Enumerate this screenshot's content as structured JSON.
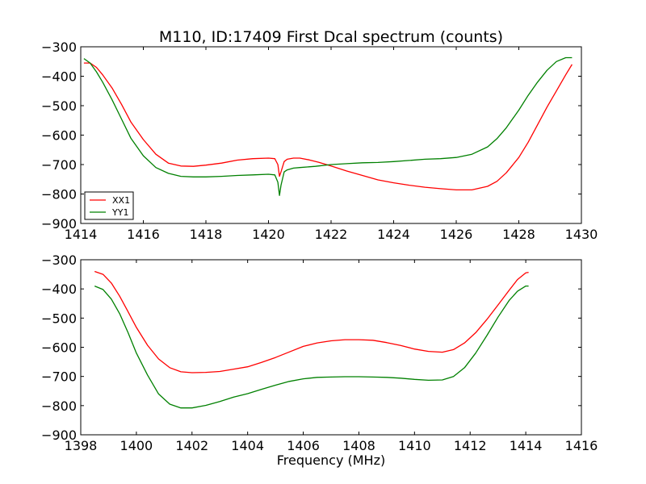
{
  "chart_data": [
    {
      "type": "line",
      "title": "M110, ID:17409 First Dcal spectrum (counts)",
      "xlabel": "",
      "ylabel": "",
      "xlim": [
        1414,
        1430
      ],
      "ylim": [
        -900,
        -300
      ],
      "xticks": [
        1414,
        1416,
        1418,
        1420,
        1422,
        1424,
        1426,
        1428,
        1430
      ],
      "yticks": [
        -300,
        -400,
        -500,
        -600,
        -700,
        -800,
        -900
      ],
      "xtick_labels": [
        "1414",
        "1416",
        "1418",
        "1420",
        "1422",
        "1424",
        "1426",
        "1428",
        "1430"
      ],
      "ytick_labels": [
        "−300",
        "−400",
        "−500",
        "−600",
        "−700",
        "−800",
        "−900"
      ],
      "grid": false,
      "legend": "lower-left",
      "series": [
        {
          "name": "XX1",
          "color": "#ff0000",
          "x": [
            1414.1,
            1414.3,
            1414.5,
            1414.7,
            1415.0,
            1415.3,
            1415.6,
            1416.0,
            1416.4,
            1416.8,
            1417.2,
            1417.6,
            1418.0,
            1418.5,
            1419.0,
            1419.5,
            1420.0,
            1420.2,
            1420.3,
            1420.35,
            1420.4,
            1420.5,
            1420.6,
            1420.8,
            1421.0,
            1421.3,
            1421.6,
            1422.0,
            1422.5,
            1423.0,
            1423.5,
            1424.0,
            1424.5,
            1425.0,
            1425.5,
            1426.0,
            1426.5,
            1427.0,
            1427.3,
            1427.6,
            1428.0,
            1428.3,
            1428.6,
            1428.9,
            1429.2,
            1429.5,
            1429.7
          ],
          "y": [
            -355,
            -355,
            -370,
            -395,
            -440,
            -495,
            -555,
            -615,
            -665,
            -695,
            -705,
            -706,
            -702,
            -695,
            -685,
            -680,
            -678,
            -680,
            -700,
            -740,
            -725,
            -690,
            -682,
            -678,
            -678,
            -684,
            -692,
            -705,
            -722,
            -737,
            -752,
            -762,
            -770,
            -777,
            -782,
            -786,
            -786,
            -774,
            -757,
            -728,
            -676,
            -624,
            -565,
            -505,
            -450,
            -395,
            -360
          ]
        },
        {
          "name": "YY1",
          "color": "#008000",
          "x": [
            1414.1,
            1414.3,
            1414.5,
            1414.7,
            1415.0,
            1415.3,
            1415.6,
            1416.0,
            1416.4,
            1416.8,
            1417.2,
            1417.6,
            1418.0,
            1418.5,
            1419.0,
            1419.5,
            1420.0,
            1420.2,
            1420.3,
            1420.35,
            1420.4,
            1420.5,
            1420.6,
            1420.8,
            1421.0,
            1421.5,
            1422.0,
            1422.5,
            1423.0,
            1423.5,
            1424.0,
            1424.5,
            1425.0,
            1425.5,
            1426.0,
            1426.5,
            1427.0,
            1427.3,
            1427.6,
            1428.0,
            1428.3,
            1428.6,
            1428.9,
            1429.2,
            1429.5,
            1429.7
          ],
          "y": [
            -340,
            -355,
            -385,
            -420,
            -480,
            -545,
            -610,
            -670,
            -710,
            -730,
            -740,
            -742,
            -742,
            -740,
            -737,
            -735,
            -733,
            -735,
            -760,
            -805,
            -770,
            -725,
            -718,
            -712,
            -710,
            -706,
            -700,
            -697,
            -694,
            -693,
            -690,
            -686,
            -682,
            -680,
            -676,
            -665,
            -640,
            -612,
            -575,
            -515,
            -465,
            -420,
            -380,
            -350,
            -337,
            -337
          ]
        }
      ]
    },
    {
      "type": "line",
      "title": "",
      "xlabel": "Frequency (MHz)",
      "ylabel": "",
      "xlim": [
        1398,
        1416
      ],
      "ylim": [
        -900,
        -300
      ],
      "xticks": [
        1398,
        1400,
        1402,
        1404,
        1406,
        1408,
        1410,
        1412,
        1414,
        1416
      ],
      "yticks": [
        -300,
        -400,
        -500,
        -600,
        -700,
        -800,
        -900
      ],
      "xtick_labels": [
        "1398",
        "1400",
        "1402",
        "1404",
        "1406",
        "1408",
        "1410",
        "1412",
        "1414",
        "1416"
      ],
      "ytick_labels": [
        "−300",
        "−400",
        "−500",
        "−600",
        "−700",
        "−800",
        "−900"
      ],
      "grid": false,
      "series": [
        {
          "name": "",
          "color": "#ff0000",
          "x": [
            1398.5,
            1398.8,
            1399.1,
            1399.4,
            1399.7,
            1400.0,
            1400.4,
            1400.8,
            1401.2,
            1401.6,
            1402.0,
            1402.5,
            1403.0,
            1403.5,
            1404.0,
            1404.5,
            1405.0,
            1405.5,
            1406.0,
            1406.5,
            1407.0,
            1407.5,
            1408.0,
            1408.5,
            1409.0,
            1409.5,
            1410.0,
            1410.5,
            1411.0,
            1411.4,
            1411.8,
            1412.2,
            1412.6,
            1413.0,
            1413.4,
            1413.7,
            1414.0,
            1414.1
          ],
          "y": [
            -340,
            -350,
            -380,
            -425,
            -478,
            -532,
            -593,
            -640,
            -670,
            -684,
            -687,
            -686,
            -683,
            -675,
            -667,
            -652,
            -635,
            -616,
            -597,
            -585,
            -578,
            -574,
            -574,
            -576,
            -584,
            -594,
            -606,
            -614,
            -617,
            -608,
            -585,
            -550,
            -505,
            -455,
            -405,
            -368,
            -345,
            -343
          ]
        },
        {
          "name": "",
          "color": "#008000",
          "x": [
            1398.5,
            1398.8,
            1399.1,
            1399.4,
            1399.7,
            1400.0,
            1400.4,
            1400.8,
            1401.2,
            1401.6,
            1402.0,
            1402.5,
            1403.0,
            1403.5,
            1404.0,
            1404.5,
            1405.0,
            1405.5,
            1406.0,
            1406.5,
            1407.0,
            1407.5,
            1408.0,
            1408.5,
            1409.0,
            1409.5,
            1410.0,
            1410.5,
            1411.0,
            1411.4,
            1411.8,
            1412.2,
            1412.6,
            1413.0,
            1413.4,
            1413.7,
            1414.0,
            1414.1
          ],
          "y": [
            -390,
            -402,
            -435,
            -485,
            -550,
            -620,
            -695,
            -760,
            -795,
            -808,
            -808,
            -799,
            -786,
            -771,
            -759,
            -744,
            -730,
            -717,
            -708,
            -703,
            -702,
            -701,
            -701,
            -702,
            -703,
            -706,
            -710,
            -713,
            -712,
            -700,
            -670,
            -620,
            -560,
            -497,
            -440,
            -408,
            -390,
            -390
          ]
        }
      ]
    }
  ]
}
